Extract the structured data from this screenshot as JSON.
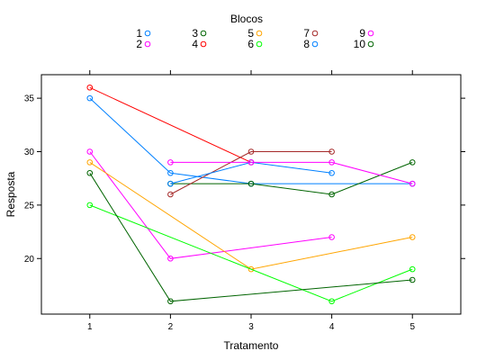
{
  "chart_data": {
    "type": "line",
    "xlabel": "Tratamento",
    "ylabel": "Resposta",
    "xlim": [
      0.4,
      5.6
    ],
    "ylim": [
      14.8,
      37.2
    ],
    "x_ticks": [
      1,
      2,
      3,
      4,
      5
    ],
    "y_ticks": [
      20,
      25,
      30,
      35
    ],
    "grid": false,
    "legend_title": "Blocos",
    "legend_position": "top",
    "series": [
      {
        "name": "1",
        "color": "#0080ff",
        "x": [
          1,
          2,
          3,
          5
        ],
        "y": [
          35,
          28,
          27,
          27
        ]
      },
      {
        "name": "2",
        "color": "#ff00ff",
        "x": [
          1,
          2,
          4
        ],
        "y": [
          30,
          20,
          22
        ]
      },
      {
        "name": "3",
        "color": "#006400",
        "x": [
          2,
          3,
          4,
          5
        ],
        "y": [
          27,
          27,
          26,
          29
        ]
      },
      {
        "name": "4",
        "color": "#ff0000",
        "x": [
          1,
          3
        ],
        "y": [
          36,
          29
        ]
      },
      {
        "name": "5",
        "color": "#ffa500",
        "x": [
          1,
          3,
          5
        ],
        "y": [
          29,
          19,
          22
        ]
      },
      {
        "name": "6",
        "color": "#00ff00",
        "x": [
          1,
          4,
          5
        ],
        "y": [
          25,
          16,
          19
        ]
      },
      {
        "name": "7",
        "color": "#a52a2a",
        "x": [
          2,
          3,
          4
        ],
        "y": [
          26,
          30,
          30
        ]
      },
      {
        "name": "8",
        "color": "#0080ff",
        "x": [
          2,
          3,
          4
        ],
        "y": [
          27,
          29,
          28
        ]
      },
      {
        "name": "9",
        "color": "#ff00ff",
        "x": [
          2,
          3,
          4,
          5
        ],
        "y": [
          29,
          29,
          29,
          27
        ]
      },
      {
        "name": "10",
        "color": "#006400",
        "x": [
          1,
          2,
          5
        ],
        "y": [
          28,
          16,
          18
        ]
      }
    ]
  }
}
